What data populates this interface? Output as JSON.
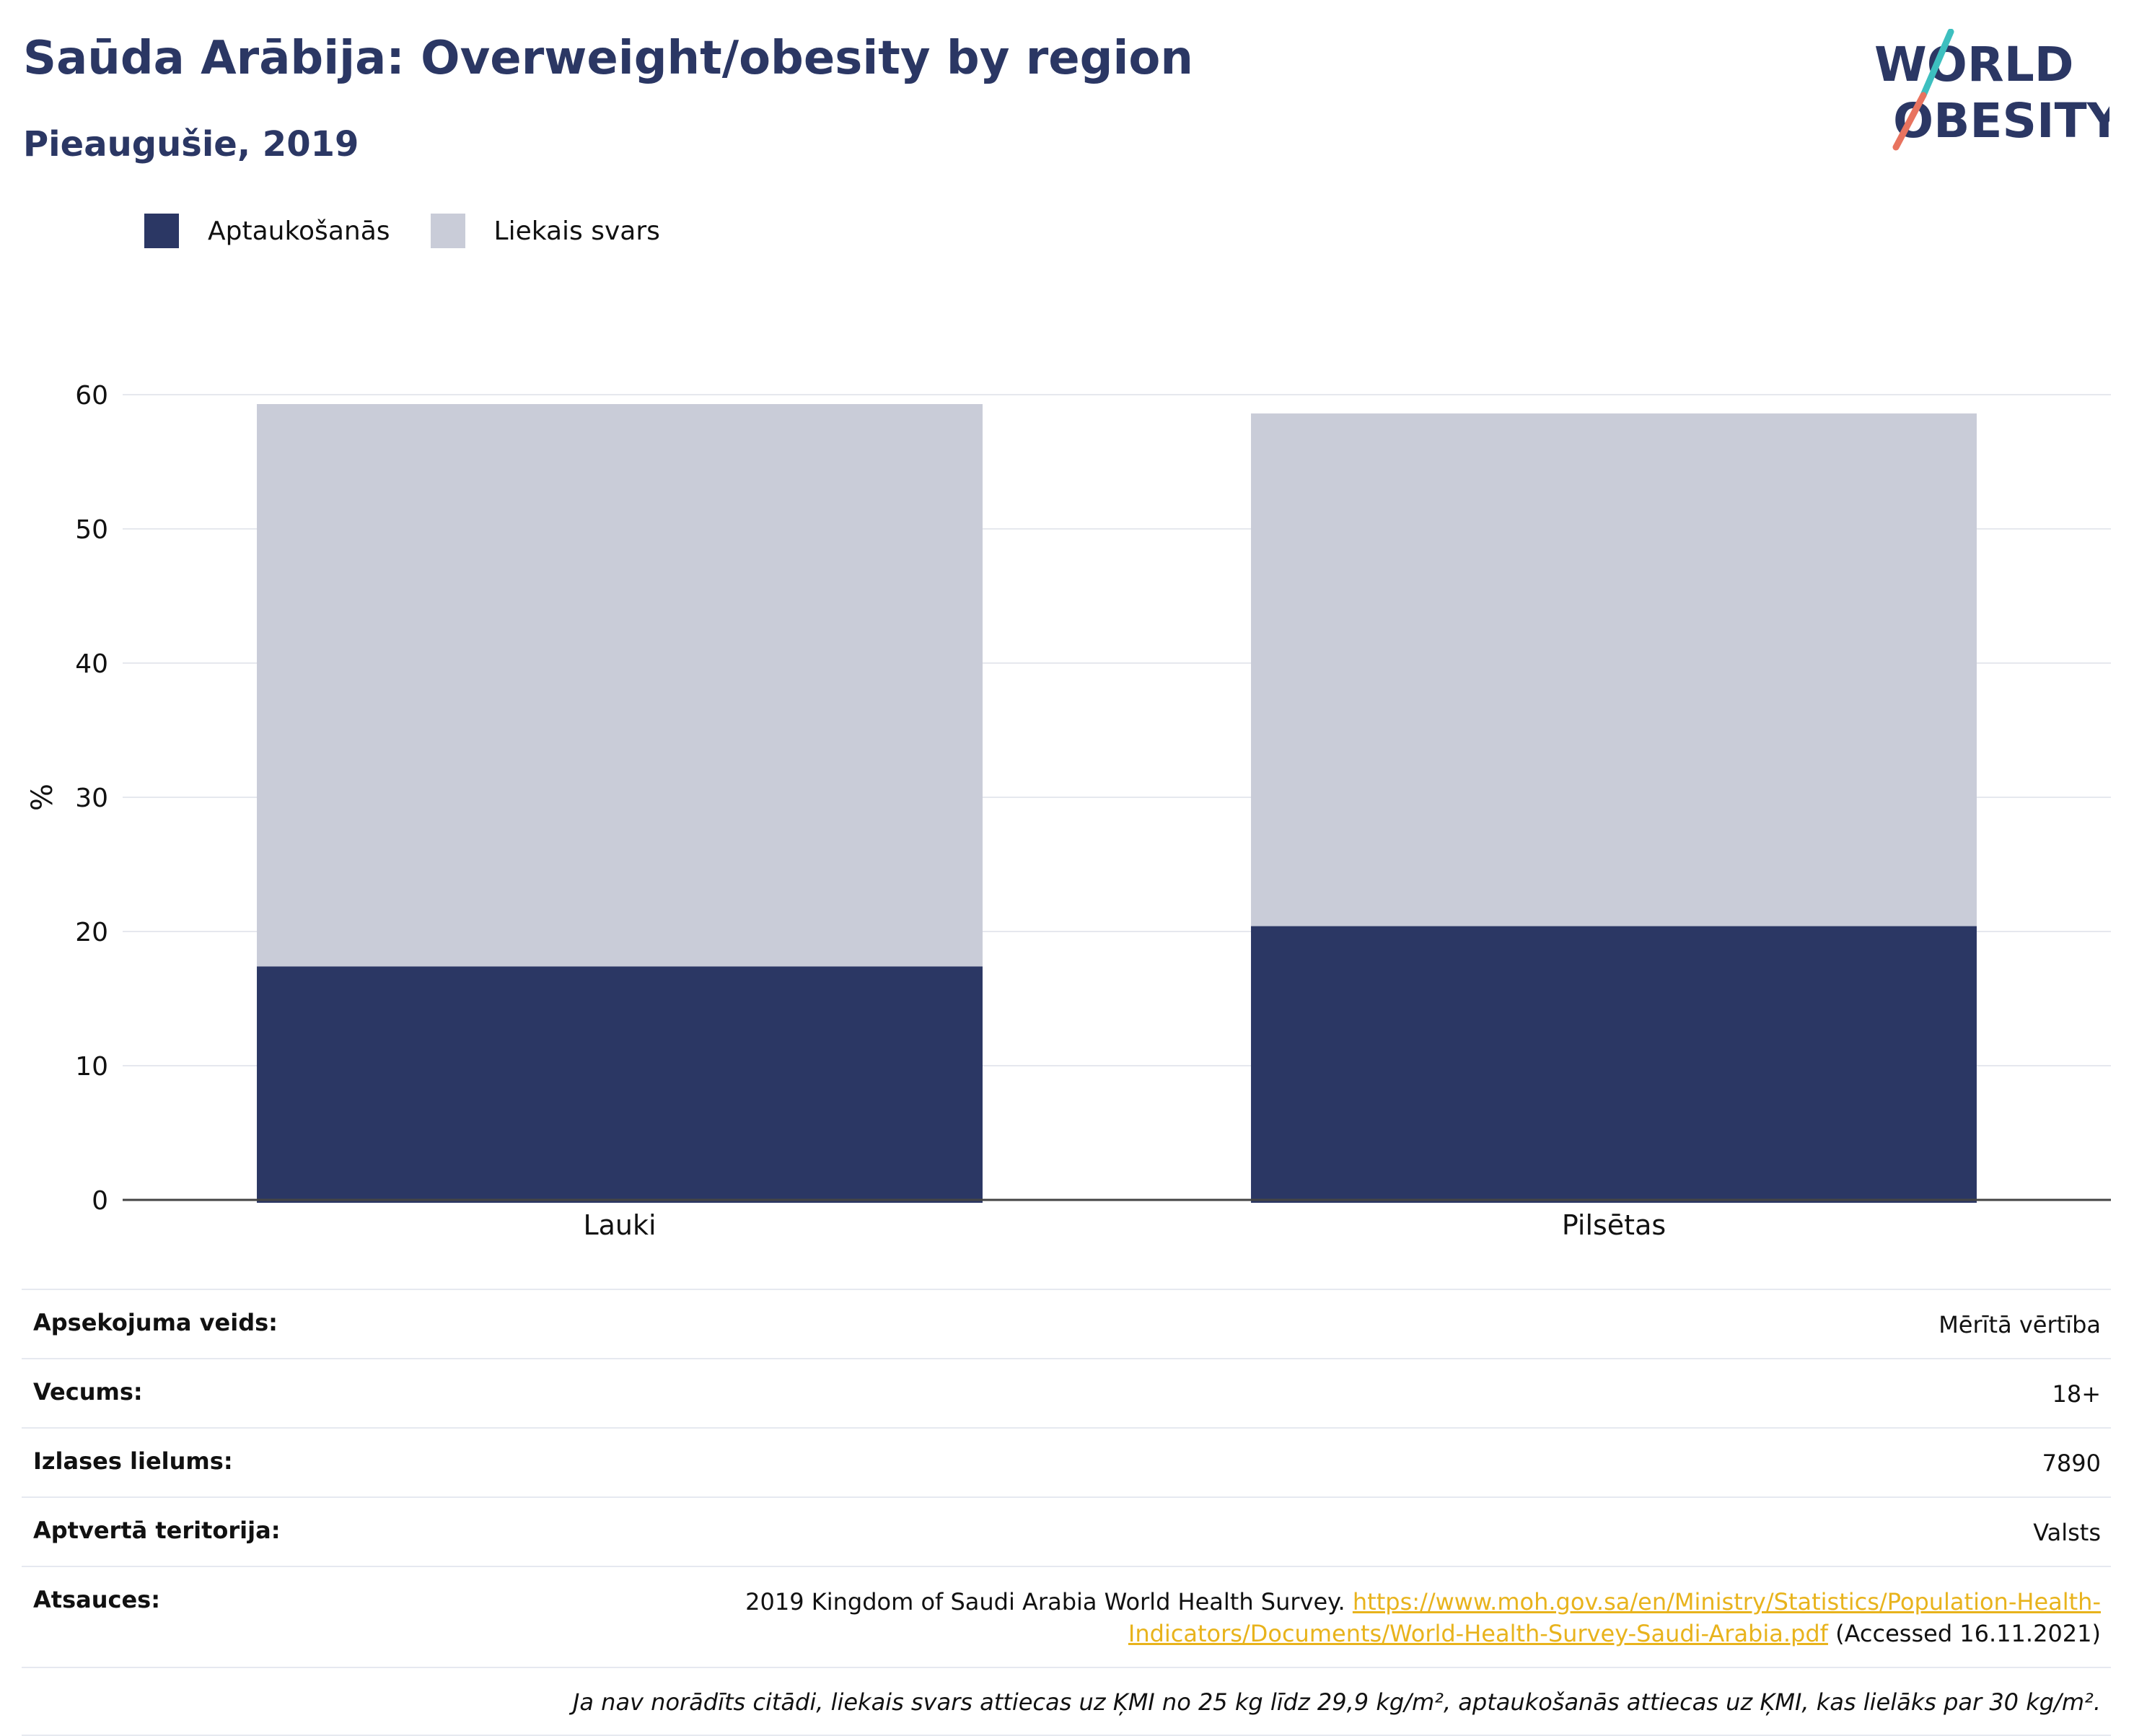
{
  "header": {
    "title": "Saūda Arābija: Overweight/obesity by region",
    "subtitle": "Pieaugušie, 2019"
  },
  "logo": {
    "line1": "WORLD",
    "line2": "OBESITY"
  },
  "colors": {
    "obesity": "#2b3764",
    "overweight": "#c9ccd8",
    "accent": "#e8b31c",
    "logo_teal": "#3dbfbf",
    "logo_coral": "#e8735f"
  },
  "chart_data": {
    "type": "bar",
    "stacked": true,
    "categories": [
      "Lauki",
      "Pilsētas"
    ],
    "series": [
      {
        "name": "Aptaukošanās",
        "values": [
          17.4,
          20.4
        ]
      },
      {
        "name": "Liekais svars",
        "values": [
          41.9,
          38.2
        ]
      }
    ],
    "ylabel": "%",
    "ylim": [
      0,
      60
    ],
    "yticks": [
      0,
      10,
      20,
      30,
      40,
      50,
      60
    ],
    "grid": true,
    "legend": "top-left"
  },
  "info": {
    "rows": [
      {
        "label": "Apsekojuma veids:",
        "value": "Mērītā vērtība"
      },
      {
        "label": "Vecums:",
        "value": "18+"
      },
      {
        "label": "Izlases lielums:",
        "value": "7890"
      },
      {
        "label": "Aptvertā teritorija:",
        "value": "Valsts"
      }
    ],
    "source": {
      "label": "Atsauces:",
      "text": "2019 Kingdom of Saudi Arabia World Health Survey.",
      "link_line1": "https://www.moh.gov.sa/en/Ministry/Statistics/Population-Health-",
      "link_line2": "Indicators/Documents/World-Health-Survey-Saudi-Arabia.pdf",
      "accessed": "(Accessed 16.11.2021)"
    },
    "note": "Ja nav norādīts citādi, liekais svars attiecas uz ĶMI no 25 kg līdz 29,9 kg/m², aptaukošanās attiecas uz ĶMI, kas lielāks par 30 kg/m²."
  }
}
